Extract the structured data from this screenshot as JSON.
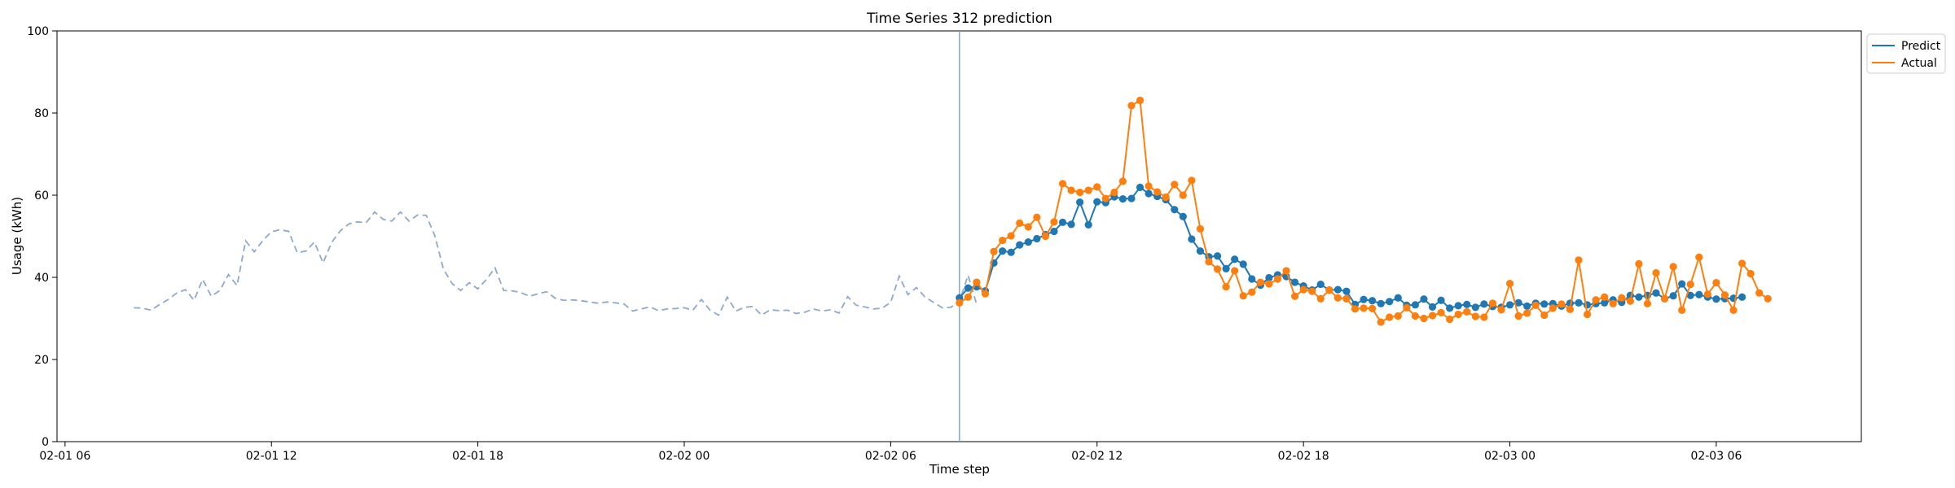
{
  "chart_data": {
    "type": "line",
    "title": "Time Series 312 prediction",
    "xlabel": "Time step",
    "ylabel": "Usage (kWh)",
    "ylim": [
      0,
      100
    ],
    "yticks": [
      0,
      20,
      40,
      60,
      80,
      100
    ],
    "x_range": [
      "2026-02-01 05:46",
      "2026-02-03 10:13"
    ],
    "xticks": [
      {
        "t": "2026-02-01 06:00",
        "label": "02-01 06"
      },
      {
        "t": "2026-02-01 12:00",
        "label": "02-01 12"
      },
      {
        "t": "2026-02-01 18:00",
        "label": "02-01 18"
      },
      {
        "t": "2026-02-02 00:00",
        "label": "02-02 00"
      },
      {
        "t": "2026-02-02 06:00",
        "label": "02-02 06"
      },
      {
        "t": "2026-02-02 12:00",
        "label": "02-02 12"
      },
      {
        "t": "2026-02-02 18:00",
        "label": "02-02 18"
      },
      {
        "t": "2026-02-03 00:00",
        "label": "02-03 00"
      },
      {
        "t": "2026-02-03 06:00",
        "label": "02-03 06"
      }
    ],
    "legend_placement": "upper right, outside",
    "grid": false,
    "split_time": "2026-02-02 08:00",
    "history": {
      "start": "2026-02-01 08:00",
      "interval_minutes": 15,
      "color": "#8fa9cc",
      "style": "dashed",
      "values": [
        32.6,
        32.5,
        32.0,
        33.4,
        34.6,
        36.2,
        37.0,
        34.4,
        39.5,
        35.4,
        36.8,
        40.7,
        38.0,
        48.9,
        46.2,
        49.0,
        51.1,
        51.6,
        51.2,
        46.0,
        46.4,
        48.6,
        43.5,
        48.5,
        51.3,
        53.0,
        53.5,
        53.3,
        55.9,
        54.1,
        53.7,
        55.9,
        53.7,
        55.2,
        55.1,
        50.1,
        42.0,
        38.5,
        36.8,
        38.7,
        37.2,
        39.5,
        42.3,
        36.8,
        36.7,
        36.3,
        35.4,
        36.0,
        36.5,
        34.9,
        34.4,
        34.5,
        34.3,
        34.0,
        33.7,
        34.0,
        33.8,
        33.5,
        31.8,
        32.3,
        32.8,
        31.9,
        32.3,
        32.4,
        32.6,
        32.0,
        34.6,
        32.0,
        30.8,
        35.2,
        31.8,
        32.7,
        32.9,
        30.8,
        32.1,
        31.9,
        32.0,
        31.2,
        31.5,
        32.3,
        31.8,
        32.1,
        31.3,
        35.3,
        33.2,
        32.8,
        32.3,
        32.5,
        33.9,
        40.3,
        35.8,
        37.5,
        35.2,
        33.9,
        32.6,
        32.7,
        34.2,
        40.5,
        33.4
      ]
    },
    "series": [
      {
        "name": "Predict",
        "color": "#1f77b4",
        "start": "2026-02-02 08:00",
        "interval_minutes": 15,
        "values": [
          35.0,
          37.4,
          37.7,
          36.7,
          43.5,
          46.4,
          46.1,
          47.9,
          48.6,
          49.4,
          50.4,
          51.2,
          53.4,
          52.9,
          58.3,
          52.8,
          58.4,
          58.2,
          59.6,
          59.1,
          59.2,
          61.9,
          60.4,
          59.7,
          58.9,
          56.5,
          54.8,
          49.3,
          46.4,
          45.0,
          45.2,
          42.1,
          44.4,
          43.2,
          39.6,
          38.1,
          39.9,
          40.6,
          40.2,
          38.8,
          37.9,
          36.9,
          38.3,
          36.9,
          37.0,
          36.6,
          33.4,
          34.6,
          34.3,
          33.6,
          34.1,
          35.0,
          33.2,
          33.3,
          34.7,
          32.8,
          34.4,
          32.5,
          33.1,
          33.4,
          32.7,
          33.5,
          32.9,
          32.7,
          33.3,
          33.8,
          33.0,
          33.7,
          33.5,
          33.6,
          33.0,
          33.7,
          33.8,
          33.3,
          33.6,
          33.8,
          34.5,
          33.9,
          35.6,
          35.2,
          35.6,
          36.2,
          34.8,
          35.5,
          38.4,
          35.6,
          35.8,
          35.2,
          34.7,
          34.8,
          34.9,
          35.2
        ]
      },
      {
        "name": "Actual",
        "color": "#ff7f0e",
        "start": "2026-02-02 08:00",
        "interval_minutes": 15,
        "values": [
          33.8,
          35.2,
          38.8,
          36.0,
          46.3,
          49.0,
          50.1,
          53.2,
          52.3,
          54.6,
          50.0,
          53.5,
          62.8,
          61.2,
          60.7,
          61.2,
          62.0,
          59.2,
          60.7,
          63.4,
          81.8,
          83.1,
          62.2,
          60.8,
          59.5,
          62.6,
          60.0,
          63.6,
          51.8,
          43.8,
          42.0,
          37.7,
          41.6,
          35.5,
          36.4,
          38.8,
          38.4,
          39.6,
          41.6,
          35.4,
          37.0,
          36.6,
          34.8,
          36.9,
          35.0,
          34.8,
          32.3,
          32.5,
          32.4,
          29.1,
          30.3,
          30.6,
          32.6,
          30.6,
          30.0,
          30.7,
          31.4,
          29.8,
          31.0,
          31.6,
          30.5,
          30.3,
          33.7,
          32.1,
          38.5,
          30.6,
          31.3,
          33.2,
          30.8,
          32.5,
          33.5,
          32.2,
          44.2,
          31.0,
          34.5,
          35.2,
          33.6,
          35.0,
          34.2,
          43.3,
          33.6,
          41.1,
          34.8,
          42.6,
          32.0,
          38.3,
          44.9,
          35.9,
          38.7,
          35.7,
          32.0,
          43.4,
          40.9,
          36.2,
          34.8
        ]
      }
    ]
  }
}
